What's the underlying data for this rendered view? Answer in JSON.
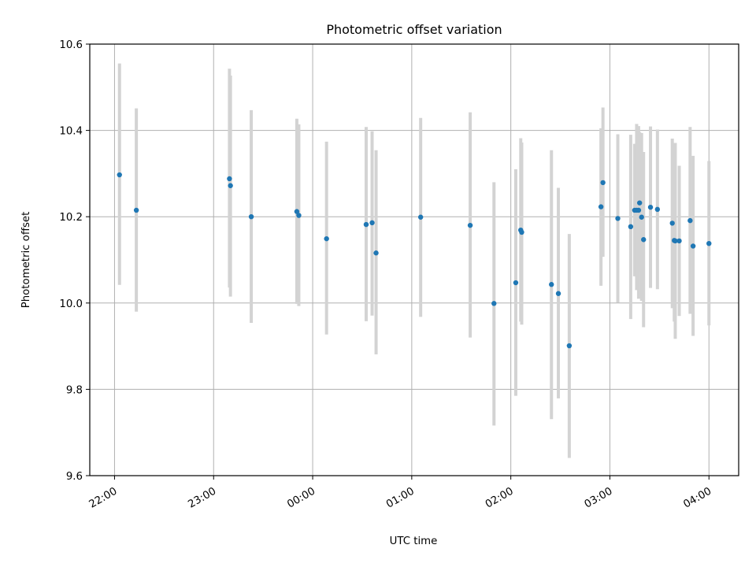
{
  "chart_data": {
    "type": "scatter",
    "title": "Photometric offset variation",
    "xlabel": "UTC time",
    "ylabel": "Photometric offset",
    "x_unit": "hours after 22:00 UTC (00:00 = 2.0)",
    "xlim": [
      -0.25,
      6.3
    ],
    "ylim": [
      9.6,
      10.6
    ],
    "xticks": [
      {
        "v": 0,
        "label": "22:00"
      },
      {
        "v": 1,
        "label": "23:00"
      },
      {
        "v": 2,
        "label": "00:00"
      },
      {
        "v": 3,
        "label": "01:00"
      },
      {
        "v": 4,
        "label": "02:00"
      },
      {
        "v": 5,
        "label": "03:00"
      },
      {
        "v": 6,
        "label": "04:00"
      }
    ],
    "yticks": [
      {
        "v": 9.6,
        "label": "9.6"
      },
      {
        "v": 9.8,
        "label": "9.8"
      },
      {
        "v": 10.0,
        "label": "10.0"
      },
      {
        "v": 10.2,
        "label": "10.2"
      },
      {
        "v": 10.4,
        "label": "10.4"
      },
      {
        "v": 10.6,
        "label": "10.6"
      }
    ],
    "grid": true,
    "colors": {
      "points": "#1f77b4",
      "errorbars": "#d3d3d3",
      "grid": "#b0b0b0"
    },
    "points": [
      {
        "x": 0.05,
        "y": 10.297,
        "lo": 10.042,
        "hi": 10.555
      },
      {
        "x": 0.22,
        "y": 10.215,
        "lo": 9.98,
        "hi": 10.451
      },
      {
        "x": 1.16,
        "y": 10.288,
        "lo": 10.036,
        "hi": 10.543
      },
      {
        "x": 1.17,
        "y": 10.272,
        "lo": 10.015,
        "hi": 10.527
      },
      {
        "x": 1.38,
        "y": 10.2,
        "lo": 9.954,
        "hi": 10.447
      },
      {
        "x": 1.84,
        "y": 10.212,
        "lo": 9.998,
        "hi": 10.427
      },
      {
        "x": 1.86,
        "y": 10.203,
        "lo": 9.993,
        "hi": 10.414
      },
      {
        "x": 2.14,
        "y": 10.149,
        "lo": 9.927,
        "hi": 10.374
      },
      {
        "x": 2.54,
        "y": 10.182,
        "lo": 9.958,
        "hi": 10.408
      },
      {
        "x": 2.6,
        "y": 10.186,
        "lo": 9.971,
        "hi": 10.398
      },
      {
        "x": 2.64,
        "y": 10.116,
        "lo": 9.881,
        "hi": 10.354
      },
      {
        "x": 3.09,
        "y": 10.199,
        "lo": 9.968,
        "hi": 10.429
      },
      {
        "x": 3.59,
        "y": 10.18,
        "lo": 9.92,
        "hi": 10.442
      },
      {
        "x": 3.83,
        "y": 9.999,
        "lo": 9.716,
        "hi": 10.28
      },
      {
        "x": 4.05,
        "y": 10.047,
        "lo": 9.785,
        "hi": 10.31
      },
      {
        "x": 4.1,
        "y": 10.169,
        "lo": 9.957,
        "hi": 10.382
      },
      {
        "x": 4.11,
        "y": 10.164,
        "lo": 9.95,
        "hi": 10.372
      },
      {
        "x": 4.41,
        "y": 10.043,
        "lo": 9.731,
        "hi": 10.354
      },
      {
        "x": 4.48,
        "y": 10.022,
        "lo": 9.779,
        "hi": 10.267
      },
      {
        "x": 4.59,
        "y": 9.901,
        "lo": 9.641,
        "hi": 10.16
      },
      {
        "x": 4.91,
        "y": 10.223,
        "lo": 10.04,
        "hi": 10.405
      },
      {
        "x": 4.93,
        "y": 10.279,
        "lo": 10.107,
        "hi": 10.453
      },
      {
        "x": 5.08,
        "y": 10.196,
        "lo": 10.001,
        "hi": 10.391
      },
      {
        "x": 5.21,
        "y": 10.177,
        "lo": 9.963,
        "hi": 10.39
      },
      {
        "x": 5.25,
        "y": 10.215,
        "lo": 10.062,
        "hi": 10.369
      },
      {
        "x": 5.27,
        "y": 10.215,
        "lo": 10.03,
        "hi": 10.415
      },
      {
        "x": 5.29,
        "y": 10.215,
        "lo": 10.01,
        "hi": 10.41
      },
      {
        "x": 5.3,
        "y": 10.232,
        "lo": 10.07,
        "hi": 10.396
      },
      {
        "x": 5.32,
        "y": 10.199,
        "lo": 10.005,
        "hi": 10.394
      },
      {
        "x": 5.34,
        "y": 10.147,
        "lo": 9.944,
        "hi": 10.35
      },
      {
        "x": 5.41,
        "y": 10.222,
        "lo": 10.035,
        "hi": 10.409
      },
      {
        "x": 5.48,
        "y": 10.217,
        "lo": 10.032,
        "hi": 10.402
      },
      {
        "x": 5.63,
        "y": 10.185,
        "lo": 9.988,
        "hi": 10.381
      },
      {
        "x": 5.65,
        "y": 10.145,
        "lo": 9.957,
        "hi": 10.33
      },
      {
        "x": 5.66,
        "y": 10.144,
        "lo": 9.917,
        "hi": 10.371
      },
      {
        "x": 5.7,
        "y": 10.144,
        "lo": 9.97,
        "hi": 10.318
      },
      {
        "x": 5.81,
        "y": 10.191,
        "lo": 9.975,
        "hi": 10.408
      },
      {
        "x": 5.84,
        "y": 10.132,
        "lo": 9.924,
        "hi": 10.341
      },
      {
        "x": 6.0,
        "y": 10.138,
        "lo": 9.948,
        "hi": 10.329
      }
    ]
  }
}
